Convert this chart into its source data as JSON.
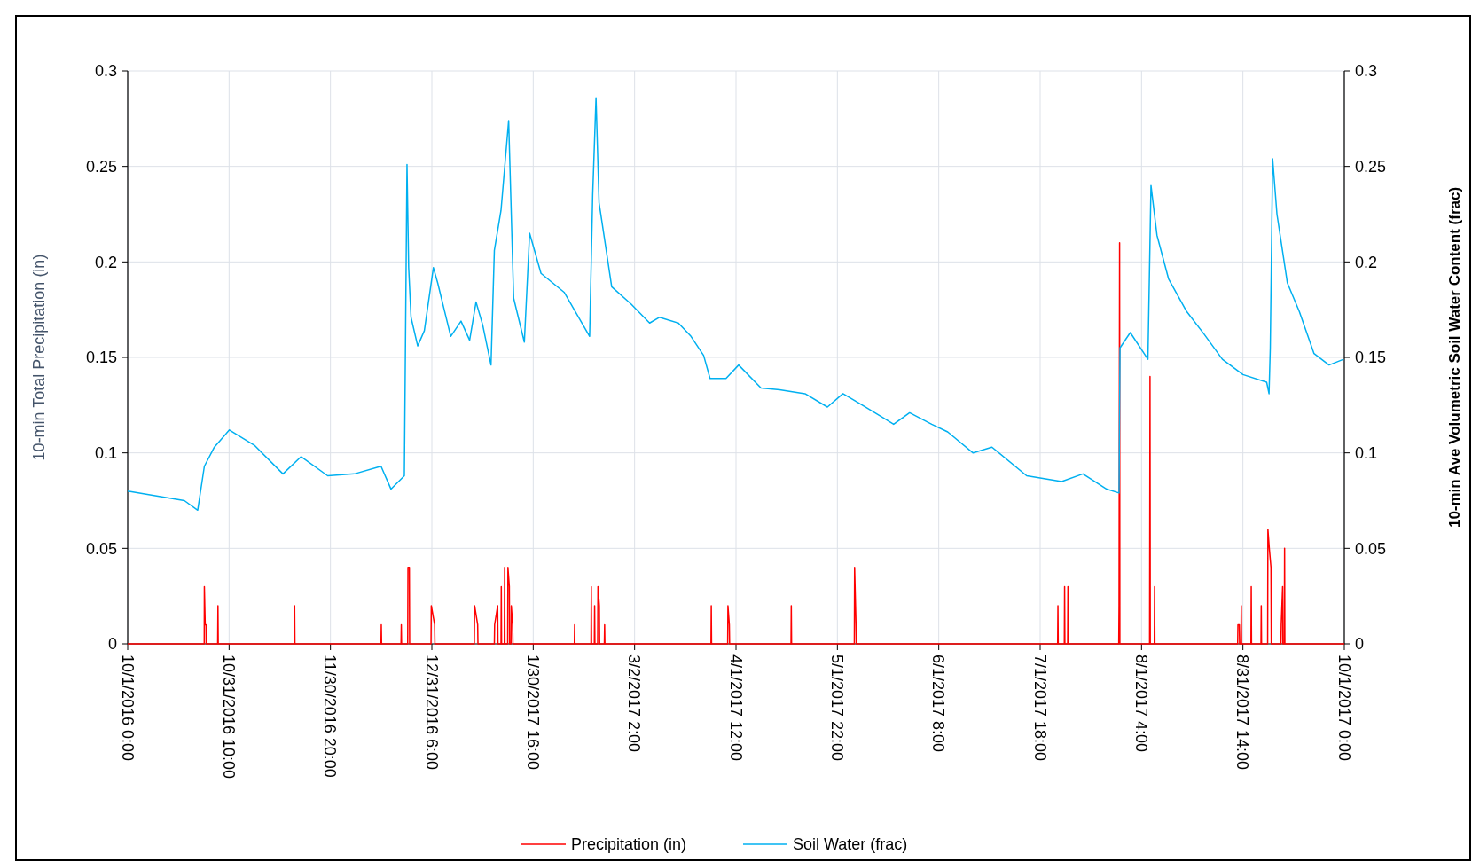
{
  "chart_data": {
    "type": "line",
    "ylabel": "10-min Total Precipitation (in)",
    "y2label": "10-min Ave Volumetric Soil Water Content (frac)",
    "ylim": [
      0,
      0.3
    ],
    "yticks": [
      0,
      0.05,
      0.1,
      0.15,
      0.2,
      0.25,
      0.3
    ],
    "y2lim": [
      0,
      0.3
    ],
    "y2ticks": [
      0,
      0.05,
      0.1,
      0.15,
      0.2,
      0.25,
      0.3
    ],
    "xlim": [
      "2016-10-01T00:00",
      "2017-10-01T00:00"
    ],
    "xticks": [
      {
        "value": "2016-10-01T00:00",
        "label": "10/1/2016 0:00"
      },
      {
        "value": "2016-10-31T10:00",
        "label": "10/31/2016 10:00"
      },
      {
        "value": "2016-11-30T20:00",
        "label": "11/30/2016 20:00"
      },
      {
        "value": "2016-12-31T06:00",
        "label": "12/31/2016 6:00"
      },
      {
        "value": "2017-01-30T16:00",
        "label": "1/30/2017 16:00"
      },
      {
        "value": "2017-03-02T02:00",
        "label": "3/2/2017 2:00"
      },
      {
        "value": "2017-04-01T12:00",
        "label": "4/1/2017 12:00"
      },
      {
        "value": "2017-05-01T22:00",
        "label": "5/1/2017 22:00"
      },
      {
        "value": "2017-06-01T08:00",
        "label": "6/1/2017 8:00"
      },
      {
        "value": "2017-07-01T18:00",
        "label": "7/1/2017 18:00"
      },
      {
        "value": "2017-08-01T04:00",
        "label": "8/1/2017 4:00"
      },
      {
        "value": "2017-08-31T14:00",
        "label": "8/31/2017 14:00"
      },
      {
        "value": "2017-10-01T00:00",
        "label": "10/1/2017 0:00"
      }
    ],
    "grid": true,
    "legend": "bottom",
    "line_style": "solid",
    "marker": "none",
    "series": [
      {
        "name": "Precipitation (in)",
        "color": "#ff0000",
        "x": [
          "2016-10-01T00:00",
          "2016-10-23T23:00",
          "2016-10-24T00:00",
          "2016-10-24T06:00",
          "2016-10-24T12:00",
          "2016-10-24T13:00",
          "2016-10-28T00:00",
          "2016-10-28T02:00",
          "2016-10-28T04:00",
          "2016-11-20T00:00",
          "2016-11-20T02:00",
          "2016-11-20T04:00",
          "2016-12-16T00:00",
          "2016-12-16T02:00",
          "2016-12-16T04:00",
          "2016-12-22T00:00",
          "2016-12-22T02:00",
          "2016-12-22T04:00",
          "2016-12-24T00:00",
          "2016-12-24T02:00",
          "2016-12-24T12:00",
          "2016-12-24T14:00",
          "2016-12-31T00:00",
          "2016-12-31T02:00",
          "2017-01-01T02:00",
          "2017-01-01T04:00",
          "2017-01-13T00:00",
          "2017-01-13T02:00",
          "2017-01-14T00:00",
          "2017-01-14T02:00",
          "2017-01-19T00:00",
          "2017-01-19T02:00",
          "2017-01-20T00:00",
          "2017-01-20T02:00",
          "2017-01-21T00:00",
          "2017-01-21T02:00",
          "2017-01-21T04:00",
          "2017-01-22T00:00",
          "2017-01-22T02:00",
          "2017-01-22T04:00",
          "2017-01-23T00:00",
          "2017-01-23T02:00",
          "2017-01-23T12:00",
          "2017-01-23T14:00",
          "2017-01-24T00:00",
          "2017-01-24T02:00",
          "2017-01-24T12:00",
          "2017-01-24T14:00",
          "2017-02-12T00:00",
          "2017-02-12T02:00",
          "2017-02-12T04:00",
          "2017-02-17T00:00",
          "2017-02-17T02:00",
          "2017-02-17T04:00",
          "2017-02-18T00:00",
          "2017-02-18T02:00",
          "2017-02-18T04:00",
          "2017-02-19T00:00",
          "2017-02-19T02:00",
          "2017-02-19T12:00",
          "2017-02-19T14:00",
          "2017-02-21T00:00",
          "2017-02-21T02:00",
          "2017-02-21T04:00",
          "2017-03-25T00:00",
          "2017-03-25T02:00",
          "2017-03-25T04:00",
          "2017-03-30T00:00",
          "2017-03-30T02:00",
          "2017-03-30T12:00",
          "2017-03-30T14:00",
          "2017-04-18T00:00",
          "2017-04-18T02:00",
          "2017-04-18T04:00",
          "2017-05-07T00:00",
          "2017-05-07T02:00",
          "2017-05-07T12:00",
          "2017-05-07T14:00",
          "2017-07-07T00:00",
          "2017-07-07T02:00",
          "2017-07-07T04:00",
          "2017-07-09T00:00",
          "2017-07-09T02:00",
          "2017-07-09T04:00",
          "2017-07-10T00:00",
          "2017-07-10T02:00",
          "2017-07-10T04:00",
          "2017-07-25T08:00",
          "2017-07-25T10:00",
          "2017-07-25T14:00",
          "2017-07-25T16:00",
          "2017-08-03T14:00",
          "2017-08-03T17:00",
          "2017-08-03T19:00",
          "2017-08-05T00:00",
          "2017-08-05T02:00",
          "2017-08-05T04:00",
          "2017-08-30T00:00",
          "2017-08-30T02:00",
          "2017-08-30T12:00",
          "2017-08-30T14:00",
          "2017-08-31T00:00",
          "2017-08-31T02:00",
          "2017-08-31T04:00",
          "2017-09-03T00:00",
          "2017-09-03T02:00",
          "2017-09-03T04:00",
          "2017-09-06T00:00",
          "2017-09-06T02:00",
          "2017-09-06T04:00",
          "2017-09-08T00:00",
          "2017-09-08T02:00",
          "2017-09-08T12:00",
          "2017-09-09T00:00",
          "2017-09-09T02:00",
          "2017-09-12T00:00",
          "2017-09-12T02:00",
          "2017-09-12T12:00",
          "2017-09-12T14:00",
          "2017-09-13T00:00",
          "2017-09-13T02:00",
          "2017-09-13T04:00",
          "2017-10-01T00:00"
        ],
        "values": [
          0,
          0,
          0.03,
          0.01,
          0.01,
          0,
          0,
          0.02,
          0,
          0,
          0.02,
          0,
          0,
          0.01,
          0,
          0,
          0.01,
          0,
          0,
          0.04,
          0.04,
          0,
          0,
          0.02,
          0.01,
          0,
          0,
          0.02,
          0.01,
          0,
          0,
          0.01,
          0.02,
          0,
          0,
          0.03,
          0,
          0,
          0.04,
          0,
          0,
          0.04,
          0.03,
          0,
          0,
          0.02,
          0.01,
          0,
          0,
          0.01,
          0,
          0,
          0.03,
          0,
          0,
          0.02,
          0,
          0,
          0.03,
          0.02,
          0,
          0,
          0.01,
          0,
          0,
          0.02,
          0,
          0,
          0.02,
          0.01,
          0,
          0,
          0.02,
          0,
          0,
          0.04,
          0.01,
          0,
          0,
          0.02,
          0,
          0,
          0.03,
          0,
          0,
          0.03,
          0,
          0,
          0.02,
          0.21,
          0,
          0,
          0.14,
          0,
          0,
          0.03,
          0,
          0,
          0.01,
          0.01,
          0,
          0,
          0.02,
          0,
          0,
          0.03,
          0,
          0,
          0.02,
          0,
          0,
          0.06,
          0.05,
          0.04,
          0,
          0,
          0.01,
          0.03,
          0,
          0,
          0.05,
          0,
          0
        ]
      },
      {
        "name": "Soil Water (frac)",
        "color": "#00b0f0",
        "x": [
          "2016-10-01T00:00",
          "2016-10-18T00:00",
          "2016-10-22T00:00",
          "2016-10-24T00:00",
          "2016-10-27T00:00",
          "2016-10-31T12:00",
          "2016-11-08T00:00",
          "2016-11-16T14:00",
          "2016-11-22T00:00",
          "2016-11-30T00:00",
          "2016-12-08T00:00",
          "2016-12-16T00:00",
          "2016-12-19T00:00",
          "2016-12-23T00:00",
          "2016-12-23T19:00",
          "2016-12-24T07:00",
          "2016-12-25T00:00",
          "2016-12-27T00:00",
          "2016-12-29T00:00",
          "2016-12-31T17:00",
          "2017-01-02T00:00",
          "2017-01-05T22:00",
          "2017-01-09T00:00",
          "2017-01-11T14:00",
          "2017-01-13T12:00",
          "2017-01-15T12:00",
          "2017-01-18T00:00",
          "2017-01-19T00:00",
          "2017-01-21T00:00",
          "2017-01-23T07:00",
          "2017-01-24T19:00",
          "2017-01-28T00:00",
          "2017-01-29T14:00",
          "2017-02-02T00:00",
          "2017-02-09T00:00",
          "2017-02-16T14:00",
          "2017-02-17T12:00",
          "2017-02-18T12:00",
          "2017-02-19T10:00",
          "2017-02-23T05:00",
          "2017-03-01T00:00",
          "2017-03-06T14:00",
          "2017-03-09T12:00",
          "2017-03-15T05:00",
          "2017-03-19T00:00",
          "2017-03-22T19:00",
          "2017-03-24T17:00",
          "2017-03-29T12:00",
          "2017-04-02T07:00",
          "2017-04-09T00:00",
          "2017-04-14T14:00",
          "2017-04-22T05:00",
          "2017-04-28T22:00",
          "2017-05-03T14:00",
          "2017-05-08T10:00",
          "2017-05-16T00:00",
          "2017-05-18T19:00",
          "2017-05-23T14:00",
          "2017-05-30T05:00",
          "2017-06-04T00:00",
          "2017-06-11T14:00",
          "2017-06-17T07:00",
          "2017-06-27T17:00",
          "2017-07-08T05:00",
          "2017-07-14T14:00",
          "2017-07-21T17:00",
          "2017-07-25T10:00",
          "2017-07-25T17:00",
          "2017-07-28T19:00",
          "2017-08-03T02:00",
          "2017-08-04T00:00",
          "2017-08-05T19:00",
          "2017-08-09T07:00",
          "2017-08-14T17:00",
          "2017-08-20T00:00",
          "2017-08-25T10:00",
          "2017-08-31T14:00",
          "2017-09-07T17:00",
          "2017-09-08T10:00",
          "2017-09-08T19:00",
          "2017-09-09T12:00",
          "2017-09-10T19:00",
          "2017-09-13T22:00",
          "2017-09-17T12:00",
          "2017-09-21T22:00",
          "2017-09-26T10:00",
          "2017-09-30T19:00"
        ],
        "values": [
          0.08,
          0.075,
          0.07,
          0.093,
          0.103,
          0.112,
          0.104,
          0.089,
          0.098,
          0.088,
          0.089,
          0.093,
          0.081,
          0.088,
          0.251,
          0.197,
          0.171,
          0.156,
          0.164,
          0.197,
          0.189,
          0.161,
          0.169,
          0.159,
          0.179,
          0.167,
          0.146,
          0.206,
          0.227,
          0.274,
          0.181,
          0.158,
          0.215,
          0.194,
          0.184,
          0.161,
          0.235,
          0.286,
          0.231,
          0.187,
          0.178,
          0.168,
          0.171,
          0.168,
          0.161,
          0.151,
          0.139,
          0.139,
          0.146,
          0.134,
          0.133,
          0.131,
          0.124,
          0.131,
          0.126,
          0.118,
          0.115,
          0.121,
          0.115,
          0.111,
          0.1,
          0.103,
          0.088,
          0.085,
          0.089,
          0.081,
          0.079,
          0.155,
          0.163,
          0.149,
          0.24,
          0.214,
          0.191,
          0.174,
          0.162,
          0.149,
          0.141,
          0.137,
          0.131,
          0.155,
          0.254,
          0.225,
          0.189,
          0.174,
          0.152,
          0.146,
          0.149
        ]
      }
    ]
  }
}
